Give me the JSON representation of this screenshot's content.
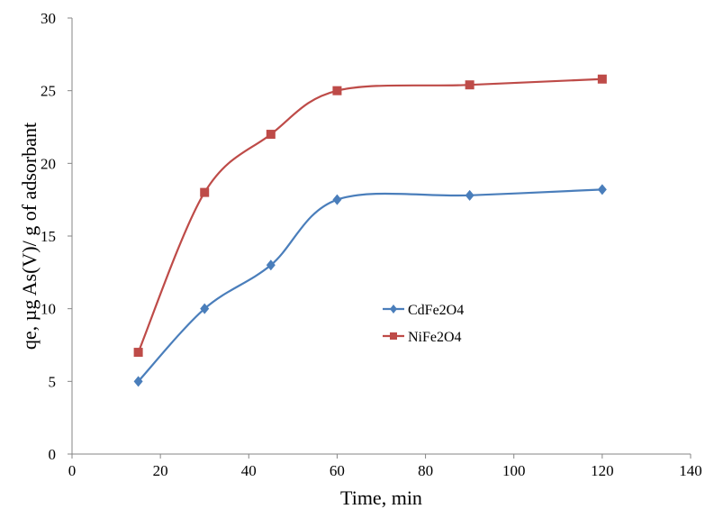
{
  "chart_data": {
    "type": "line",
    "xlabel": "Time, min",
    "ylabel": "qe, µg As(V)/ g of adsorbant",
    "xlim": [
      0,
      140
    ],
    "ylim": [
      0,
      30
    ],
    "xticks": [
      0,
      20,
      40,
      60,
      80,
      100,
      120,
      140
    ],
    "yticks": [
      0,
      5,
      10,
      15,
      20,
      25,
      30
    ],
    "grid": false,
    "legend_position": "center-right",
    "x": [
      15,
      30,
      45,
      60,
      90,
      120
    ],
    "series": [
      {
        "name": "CdFe2O4",
        "values": [
          5,
          10,
          13,
          17.5,
          17.8,
          18.2
        ],
        "color": "#4a7ebb",
        "marker": "diamond"
      },
      {
        "name": "NiFe2O4",
        "values": [
          7,
          18,
          22,
          25,
          25.4,
          25.8
        ],
        "color": "#be4b48",
        "marker": "square"
      }
    ]
  }
}
